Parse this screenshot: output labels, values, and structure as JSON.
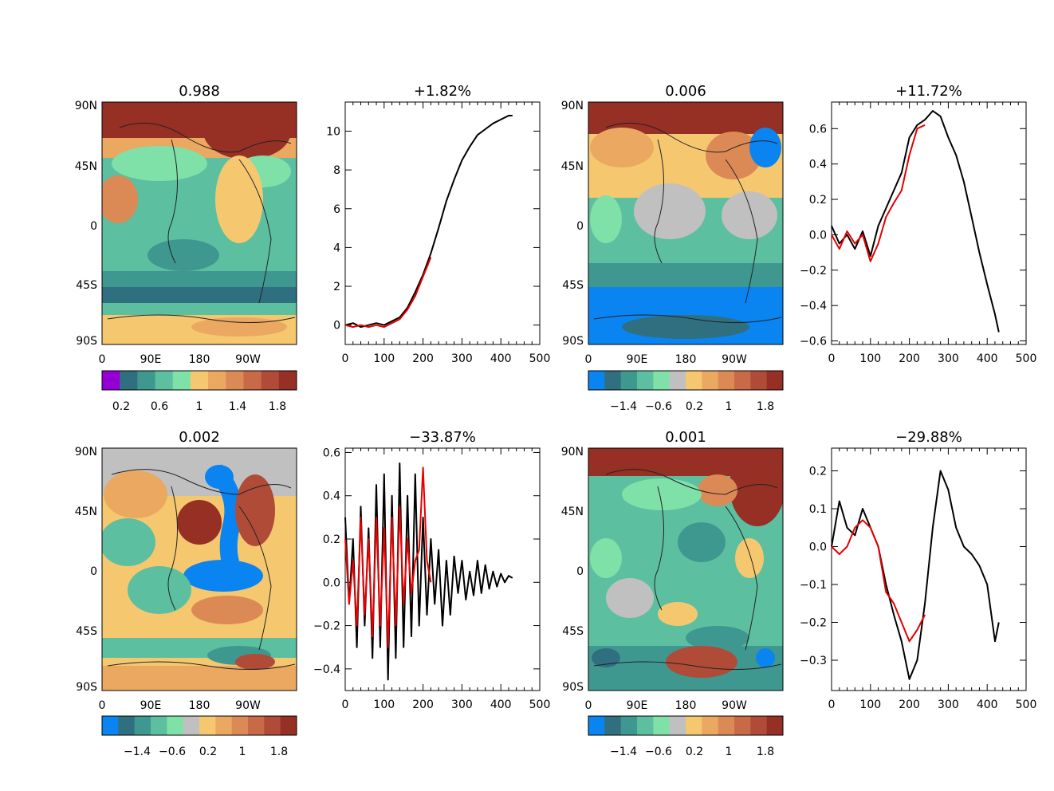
{
  "chart_data": [
    {
      "type": "heatmap",
      "panel": "map-1",
      "title": "0.988",
      "y_ticks": [
        "90N",
        "45N",
        "0",
        "45S",
        "90S"
      ],
      "x_ticks": [
        "0",
        "90E",
        "180",
        "90W"
      ],
      "colorbar": {
        "colors": [
          "#9400d3",
          "#2f6f80",
          "#3f9890",
          "#5cbfa0",
          "#7fe0a8",
          "#f5c870",
          "#eba860",
          "#dc8a55",
          "#c86a48",
          "#b04b38",
          "#962f24"
        ],
        "labels": [
          "0.2",
          "0.6",
          "1",
          "1.4",
          "1.8"
        ]
      }
    },
    {
      "type": "line",
      "panel": "line-1",
      "title": "+1.82%",
      "xlim": [
        0,
        500
      ],
      "ylim": [
        -1,
        11.5
      ],
      "x_ticks": [
        "0",
        "100",
        "200",
        "300",
        "400",
        "500"
      ],
      "y_ticks": [
        "0",
        "2",
        "4",
        "6",
        "8",
        "10"
      ],
      "series": [
        {
          "name": "black",
          "color": "#000000",
          "x": [
            0,
            20,
            40,
            60,
            80,
            100,
            120,
            140,
            160,
            180,
            200,
            220,
            240,
            260,
            280,
            300,
            320,
            340,
            360,
            380,
            400,
            420,
            430
          ],
          "y": [
            0,
            0.1,
            -0.1,
            0,
            0.1,
            0,
            0.2,
            0.4,
            0.9,
            1.7,
            2.6,
            3.7,
            5.0,
            6.4,
            7.5,
            8.5,
            9.2,
            9.8,
            10.1,
            10.4,
            10.6,
            10.8,
            10.8
          ]
        },
        {
          "name": "red",
          "color": "#e60000",
          "x": [
            0,
            20,
            40,
            60,
            80,
            100,
            120,
            140,
            160,
            180,
            200,
            220
          ],
          "y": [
            0,
            -0.1,
            0,
            -0.1,
            0,
            -0.1,
            0.1,
            0.3,
            0.8,
            1.5,
            2.5,
            3.5
          ]
        }
      ]
    },
    {
      "type": "heatmap",
      "panel": "map-2",
      "title": "0.006",
      "y_ticks": [
        "90N",
        "45N",
        "0",
        "45S",
        "90S"
      ],
      "x_ticks": [
        "0",
        "90E",
        "180",
        "90W"
      ],
      "colorbar": {
        "colors": [
          "#0a84f0",
          "#2f6f80",
          "#3f9890",
          "#5cbfa0",
          "#7fe0a8",
          "#c0c0c0",
          "#f5c870",
          "#eba860",
          "#dc8a55",
          "#c86a48",
          "#b04b38",
          "#962f24"
        ],
        "labels": [
          "−1.4",
          "−0.6",
          "0.2",
          "1",
          "1.8"
        ]
      }
    },
    {
      "type": "line",
      "panel": "line-2",
      "title": "+11.72%",
      "xlim": [
        0,
        500
      ],
      "ylim": [
        -0.62,
        0.75
      ],
      "x_ticks": [
        "0",
        "100",
        "200",
        "300",
        "400",
        "500"
      ],
      "y_ticks": [
        "−0.6",
        "−0.4",
        "−0.2",
        "0.0",
        "0.2",
        "0.4",
        "0.6"
      ],
      "series": [
        {
          "name": "black",
          "color": "#000000",
          "x": [
            0,
            20,
            40,
            60,
            80,
            100,
            120,
            140,
            160,
            180,
            200,
            220,
            240,
            260,
            280,
            300,
            320,
            340,
            360,
            380,
            400,
            420,
            430
          ],
          "y": [
            0.05,
            -0.05,
            0.0,
            -0.08,
            0.02,
            -0.12,
            0.05,
            0.15,
            0.25,
            0.35,
            0.55,
            0.62,
            0.65,
            0.7,
            0.67,
            0.55,
            0.45,
            0.3,
            0.1,
            -0.1,
            -0.28,
            -0.45,
            -0.55
          ]
        },
        {
          "name": "red",
          "color": "#e60000",
          "x": [
            0,
            20,
            40,
            60,
            80,
            100,
            120,
            140,
            160,
            180,
            200,
            220,
            240
          ],
          "y": [
            0,
            -0.08,
            0.02,
            -0.05,
            0.0,
            -0.15,
            -0.05,
            0.1,
            0.18,
            0.25,
            0.45,
            0.6,
            0.62
          ]
        }
      ]
    },
    {
      "type": "heatmap",
      "panel": "map-3",
      "title": "0.002",
      "y_ticks": [
        "90N",
        "45N",
        "0",
        "45S",
        "90S"
      ],
      "x_ticks": [
        "0",
        "90E",
        "180",
        "90W"
      ],
      "colorbar": {
        "colors": [
          "#0a84f0",
          "#2f6f80",
          "#3f9890",
          "#5cbfa0",
          "#7fe0a8",
          "#c0c0c0",
          "#f5c870",
          "#eba860",
          "#dc8a55",
          "#c86a48",
          "#b04b38",
          "#962f24"
        ],
        "labels": [
          "−1.4",
          "−0.6",
          "0.2",
          "1",
          "1.8"
        ]
      }
    },
    {
      "type": "line",
      "panel": "line-3",
      "title": "−33.87%",
      "xlim": [
        0,
        500
      ],
      "ylim": [
        -0.5,
        0.62
      ],
      "x_ticks": [
        "0",
        "100",
        "200",
        "300",
        "400",
        "500"
      ],
      "y_ticks": [
        "−0.4",
        "−0.2",
        "0.0",
        "0.2",
        "0.4",
        "0.6"
      ],
      "series": [
        {
          "name": "black",
          "color": "#000000",
          "x": [
            0,
            10,
            20,
            30,
            40,
            50,
            60,
            70,
            80,
            90,
            100,
            110,
            120,
            130,
            140,
            150,
            160,
            170,
            180,
            190,
            200,
            210,
            220,
            230,
            240,
            250,
            260,
            270,
            280,
            290,
            300,
            310,
            320,
            330,
            340,
            350,
            360,
            370,
            380,
            390,
            400,
            410,
            420,
            430
          ],
          "y": [
            0.3,
            -0.1,
            0.2,
            -0.3,
            0.35,
            -0.2,
            0.25,
            -0.35,
            0.45,
            -0.3,
            0.5,
            -0.45,
            0.4,
            -0.35,
            0.55,
            -0.3,
            0.4,
            -0.25,
            0.5,
            -0.2,
            0.3,
            -0.15,
            0.2,
            -0.1,
            0.15,
            -0.2,
            0.1,
            -0.15,
            0.12,
            -0.05,
            0.1,
            -0.08,
            0.05,
            -0.06,
            0.1,
            -0.05,
            0.08,
            -0.03,
            0.05,
            -0.02,
            0.04,
            0.0,
            0.03,
            0.02
          ]
        },
        {
          "name": "red",
          "color": "#e60000",
          "x": [
            0,
            10,
            20,
            30,
            40,
            50,
            60,
            70,
            80,
            90,
            100,
            110,
            120,
            130,
            140,
            150,
            160,
            170,
            180,
            190,
            200,
            210,
            220
          ],
          "y": [
            0.2,
            -0.1,
            0.1,
            -0.2,
            0.3,
            -0.15,
            0.2,
            -0.25,
            0.3,
            -0.2,
            0.25,
            -0.3,
            0.3,
            -0.2,
            0.35,
            -0.1,
            0.2,
            -0.05,
            0.1,
            0.15,
            0.53,
            0.1,
            0.0
          ]
        }
      ]
    },
    {
      "type": "heatmap",
      "panel": "map-4",
      "title": "0.001",
      "y_ticks": [
        "90N",
        "45N",
        "0",
        "45S",
        "90S"
      ],
      "x_ticks": [
        "0",
        "90E",
        "180",
        "90W"
      ],
      "colorbar": {
        "colors": [
          "#0a84f0",
          "#2f6f80",
          "#3f9890",
          "#5cbfa0",
          "#7fe0a8",
          "#c0c0c0",
          "#f5c870",
          "#eba860",
          "#dc8a55",
          "#c86a48",
          "#b04b38",
          "#962f24"
        ],
        "labels": [
          "−1.4",
          "−0.6",
          "0.2",
          "1",
          "1.8"
        ]
      }
    },
    {
      "type": "line",
      "panel": "line-4",
      "title": "−29.88%",
      "xlim": [
        0,
        500
      ],
      "ylim": [
        -0.38,
        0.26
      ],
      "x_ticks": [
        "0",
        "100",
        "200",
        "300",
        "400",
        "500"
      ],
      "y_ticks": [
        "−0.3",
        "−0.2",
        "−0.1",
        "0.0",
        "0.1",
        "0.2"
      ],
      "series": [
        {
          "name": "black",
          "color": "#000000",
          "x": [
            0,
            20,
            40,
            60,
            80,
            100,
            120,
            140,
            160,
            180,
            200,
            220,
            240,
            260,
            280,
            300,
            320,
            340,
            360,
            380,
            400,
            420,
            430
          ],
          "y": [
            0.0,
            0.12,
            0.05,
            0.03,
            0.1,
            0.05,
            0.0,
            -0.1,
            -0.18,
            -0.25,
            -0.35,
            -0.3,
            -0.15,
            0.05,
            0.2,
            0.15,
            0.05,
            0.0,
            -0.02,
            -0.05,
            -0.1,
            -0.25,
            -0.2
          ]
        },
        {
          "name": "red",
          "color": "#e60000",
          "x": [
            0,
            20,
            40,
            60,
            80,
            100,
            120,
            140,
            160,
            180,
            200,
            220,
            240
          ],
          "y": [
            0.0,
            -0.02,
            0.0,
            0.05,
            0.07,
            0.05,
            0.0,
            -0.12,
            -0.15,
            -0.2,
            -0.25,
            -0.22,
            -0.18
          ]
        }
      ]
    }
  ]
}
